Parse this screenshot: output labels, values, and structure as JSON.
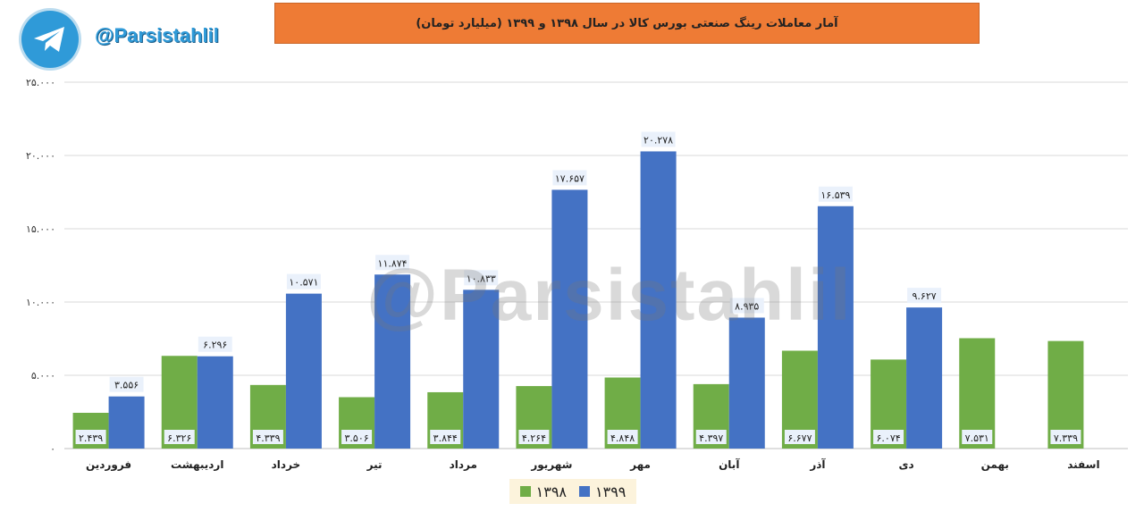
{
  "brand": {
    "handle": "@Parsistahlil",
    "icon": "telegram-icon"
  },
  "watermark": "@Parsistahlil",
  "chart_data": {
    "type": "bar",
    "title": "آمار معاملات رینگ صنعتی بورس کالا در سال ۱۳۹۸ و ۱۳۹۹ (میلیارد تومان)",
    "categories": [
      "فروردین",
      "اردیبهشت",
      "خرداد",
      "تیر",
      "مرداد",
      "شهریور",
      "مهر",
      "آبان",
      "آذر",
      "دی",
      "بهمن",
      "اسفند"
    ],
    "series": [
      {
        "name": "۱۳۹۸",
        "color": "#70ad47",
        "values": [
          2439,
          6326,
          4339,
          3506,
          3844,
          4264,
          4848,
          4397,
          6677,
          6074,
          7531,
          7339
        ],
        "labels": [
          "۲.۴۳۹",
          "۶.۳۲۶",
          "۴.۳۳۹",
          "۳.۵۰۶",
          "۳.۸۴۴",
          "۴.۲۶۴",
          "۴.۸۴۸",
          "۴.۳۹۷",
          "۶.۶۷۷",
          "۶.۰۷۴",
          "۷.۵۳۱",
          "۷.۳۳۹"
        ]
      },
      {
        "name": "۱۳۹۹",
        "color": "#4472c4",
        "values": [
          3556,
          6296,
          10571,
          11874,
          10833,
          17657,
          20278,
          8935,
          16539,
          9627,
          null,
          null
        ],
        "labels": [
          "۳.۵۵۶",
          "۶.۲۹۶",
          "۱۰.۵۷۱",
          "۱۱.۸۷۴",
          "۱۰.۸۳۳",
          "۱۷.۶۵۷",
          "۲۰.۲۷۸",
          "۸.۹۳۵",
          "۱۶.۵۳۹",
          "۹.۶۲۷",
          null,
          null
        ]
      }
    ],
    "y_ticks": [
      0,
      5000,
      10000,
      15000,
      20000,
      25000
    ],
    "y_tick_labels": [
      "۰",
      "۵.۰۰۰",
      "۱۰.۰۰۰",
      "۱۵.۰۰۰",
      "۲۰.۰۰۰",
      "۲۵.۰۰۰"
    ],
    "ylim": [
      0,
      25000
    ],
    "grid": true,
    "legend_position": "bottom"
  }
}
